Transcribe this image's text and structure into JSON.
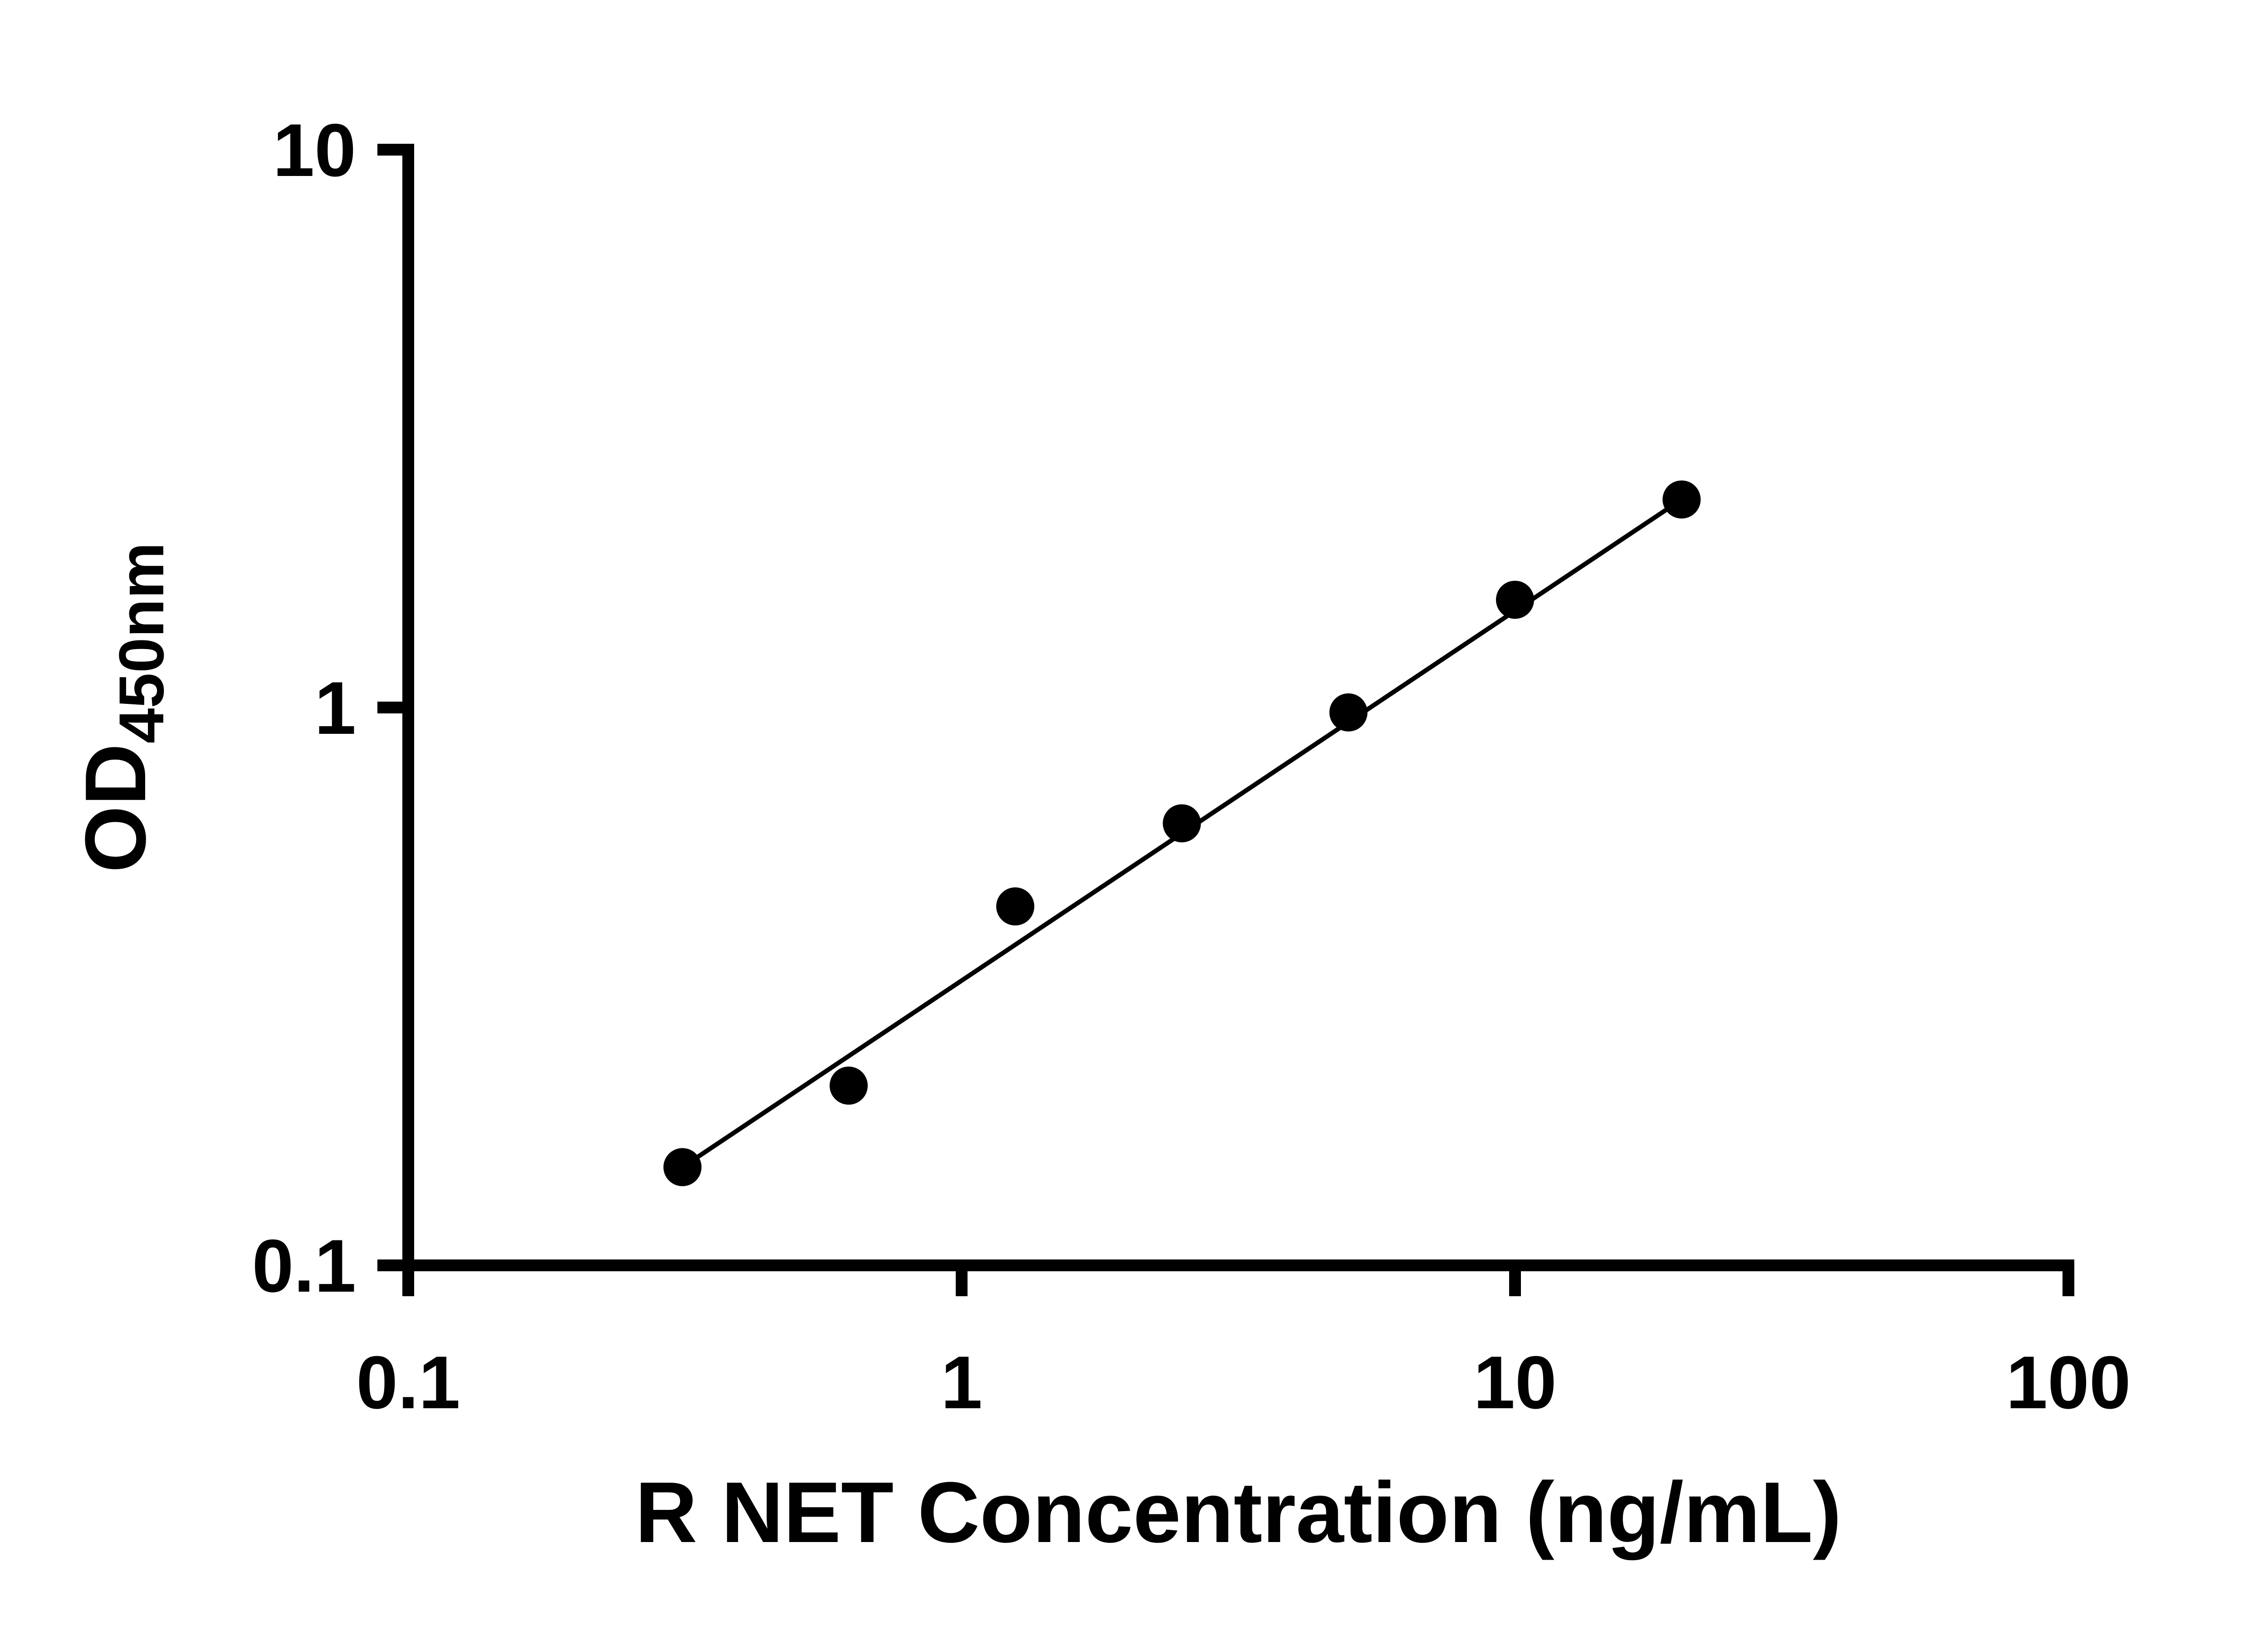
{
  "chart_data": {
    "type": "scatter",
    "title": "",
    "xlabel": "R NET Concentration (ng/mL)",
    "ylabel": "OD",
    "ylabel_subscript": "450nm",
    "x_scale": "log",
    "y_scale": "log",
    "xlim": [
      0.1,
      100
    ],
    "ylim": [
      0.1,
      10
    ],
    "x_ticks": [
      0.1,
      1,
      10,
      100
    ],
    "x_tick_labels": [
      "0.1",
      "1",
      "10",
      "100"
    ],
    "y_ticks": [
      0.1,
      1,
      10
    ],
    "y_tick_labels": [
      "0.1",
      "1",
      "10"
    ],
    "grid": false,
    "legend": false,
    "background_color": "#ffffff",
    "axis_color": "#000000",
    "marker_color": "#000000",
    "line_color": "#000000",
    "series": [
      {
        "name": "standard-curve-points",
        "marker": "filled-circle",
        "x": [
          0.313,
          0.625,
          1.25,
          2.5,
          5,
          10,
          20
        ],
        "y": [
          0.15,
          0.21,
          0.44,
          0.62,
          0.98,
          1.56,
          2.36
        ]
      }
    ],
    "trend_line": {
      "x": [
        0.313,
        20
      ],
      "y": [
        0.15,
        2.36
      ]
    }
  }
}
